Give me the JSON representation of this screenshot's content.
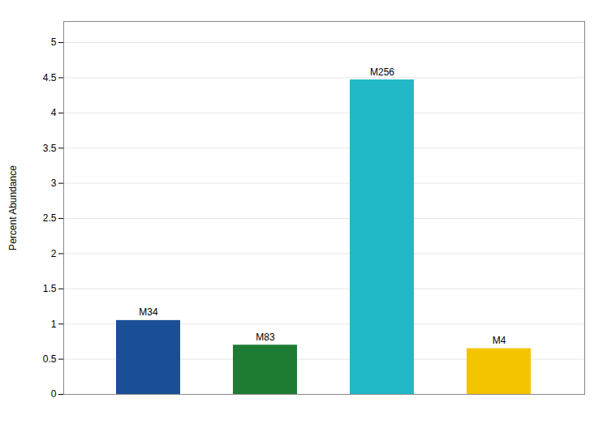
{
  "chart_data": {
    "type": "bar",
    "categories": [
      "M34",
      "M83",
      "M256",
      "M4"
    ],
    "values": [
      1.05,
      0.7,
      4.47,
      0.65
    ],
    "colors": [
      "#1A4E96",
      "#1E7B34",
      "#21B8C8",
      "#F5C400"
    ],
    "ylabel": "Percent Abundance",
    "ylim": [
      0,
      5.3
    ],
    "yticks": [
      0,
      0.5,
      1,
      1.5,
      2,
      2.5,
      3,
      3.5,
      4,
      4.5,
      5
    ],
    "grid": true,
    "tick_labels": "y"
  }
}
